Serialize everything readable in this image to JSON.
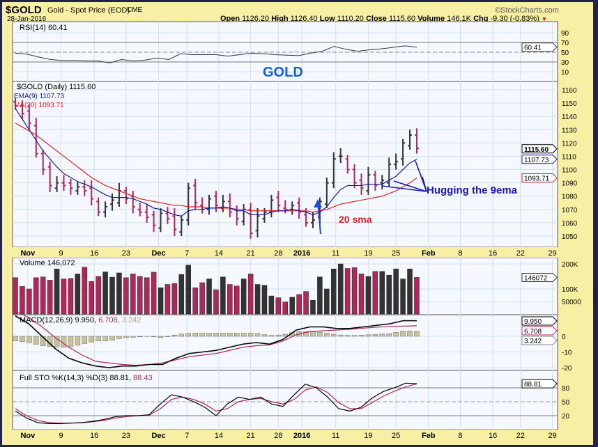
{
  "header": {
    "symbol": "$GOLD",
    "name": "Gold - Spot Price (EOD)",
    "exchange": "CME",
    "date": "28-Jan-2016",
    "copyright": "©StockCharts.com",
    "quote": [
      {
        "k": "Open",
        "v": "1126.20"
      },
      {
        "k": "High",
        "v": "1126.40"
      },
      {
        "k": "Low",
        "v": "1110.20"
      },
      {
        "k": "Close",
        "v": "1115.60"
      },
      {
        "k": "Volume",
        "v": "146.1K"
      },
      {
        "k": "Chg",
        "v": "-9.30 (-0.83%)"
      }
    ]
  },
  "rsi": {
    "label": "RSI(14) 60.41",
    "value_tag": "60.41",
    "ticks": [
      90,
      70,
      50,
      30,
      10
    ],
    "values": [
      48,
      46,
      40,
      35,
      33,
      33,
      32,
      32,
      28,
      35,
      32,
      34,
      38,
      35,
      47,
      45,
      45,
      45,
      42,
      45,
      48,
      47,
      45,
      44,
      43,
      48,
      52,
      62,
      56,
      52,
      55,
      57,
      60,
      63,
      60.41
    ]
  },
  "price": {
    "label": "$GOLD (Daily) 1115.60",
    "ema_label": "EMA(9) 1107.73",
    "ma_label": "MA(20) 1093.71",
    "tags": {
      "close": "1115.60",
      "ema": "1107.73",
      "ma": "1093.71"
    },
    "ticks": [
      1160,
      1150,
      1140,
      1130,
      1120,
      1110,
      1100,
      1090,
      1080,
      1070,
      1060,
      1050
    ],
    "closes": [
      1148,
      1142,
      1135,
      1112,
      1100,
      1088,
      1090,
      1088,
      1086,
      1087,
      1084,
      1078,
      1068,
      1072,
      1077,
      1084,
      1078,
      1072,
      1068,
      1064,
      1058,
      1067,
      1063,
      1055,
      1062,
      1086,
      1075,
      1070,
      1078,
      1073,
      1076,
      1068,
      1063,
      1070,
      1052,
      1065,
      1068,
      1077,
      1073,
      1070,
      1073,
      1068,
      1060,
      1062,
      1076,
      1090,
      1108,
      1110,
      1100,
      1090,
      1086,
      1096,
      1088,
      1092,
      1104,
      1106,
      1120,
      1126,
      1116
    ],
    "ema": [
      1146,
      1138,
      1130,
      1122,
      1114,
      1108,
      1102,
      1097,
      1094,
      1091,
      1089,
      1087,
      1084,
      1081,
      1079,
      1079,
      1079,
      1078,
      1076,
      1074,
      1071,
      1070,
      1068,
      1066,
      1065,
      1069,
      1070,
      1070,
      1071,
      1071,
      1072,
      1071,
      1069,
      1069,
      1066,
      1066,
      1066,
      1068,
      1069,
      1069,
      1070,
      1069,
      1068,
      1066,
      1068,
      1072,
      1079,
      1085,
      1088,
      1088,
      1088,
      1089,
      1089,
      1089,
      1092,
      1095,
      1100,
      1105,
      1107.73
    ],
    "ma": [
      1135,
      1132,
      1129,
      1126,
      1122,
      1118,
      1114,
      1110,
      1106,
      1102,
      1098,
      1094,
      1091,
      1088,
      1086,
      1084,
      1082,
      1080,
      1078,
      1077,
      1076,
      1075,
      1074,
      1073,
      1073,
      1072,
      1072,
      1072,
      1071,
      1071,
      1071,
      1071,
      1070,
      1070,
      1069,
      1069,
      1069,
      1069,
      1069,
      1069,
      1069,
      1069,
      1069,
      1068,
      1069,
      1070,
      1072,
      1074,
      1075,
      1076,
      1077,
      1078,
      1079,
      1080,
      1082,
      1084,
      1087,
      1090,
      1093.71
    ]
  },
  "annotations": {
    "title": "GOLD",
    "hug": "Hugging the 9ema",
    "sma": "20 sma"
  },
  "volume": {
    "label": "Volume 146,072",
    "value_tag": "146072",
    "ticks": [
      "200K",
      "100K",
      "50000"
    ],
    "values": [
      145,
      110,
      100,
      145,
      148,
      135,
      180,
      140,
      142,
      160,
      187,
      130,
      150,
      168,
      147,
      164,
      145,
      160,
      150,
      145,
      167,
      105,
      118,
      122,
      158,
      195,
      105,
      125,
      140,
      97,
      148,
      118,
      112,
      140,
      160,
      118,
      115,
      72,
      65,
      48,
      67,
      78,
      90,
      55,
      148,
      100,
      180,
      200,
      182,
      185,
      160,
      150,
      170,
      170,
      155,
      180,
      140,
      180,
      146
    ]
  },
  "macd": {
    "label": "MACD(12,26,9) 9.950,",
    "signal_text": "6.708,",
    "hist_text": "3.242",
    "tags": [
      "9.950",
      "6.708",
      "3.242"
    ],
    "ticks": [
      "0",
      "-10",
      "-20"
    ],
    "macd": [
      13,
      8,
      0,
      -8,
      -14,
      -17,
      -19,
      -20,
      -19,
      -19,
      -18,
      -18,
      -14,
      -11,
      -10,
      -9,
      -7,
      -5,
      -4,
      -5,
      -2,
      4,
      6,
      6,
      5,
      5,
      6,
      7,
      8,
      10,
      9.95
    ],
    "signal": [
      16,
      12,
      6,
      -1,
      -7,
      -12,
      -16,
      -17,
      -18,
      -18.5,
      -18,
      -17,
      -15,
      -13,
      -12,
      -11,
      -9,
      -7,
      -6,
      -5.5,
      -3,
      1,
      3,
      3.5,
      4,
      4.5,
      5.2,
      5.8,
      6.3,
      6.5,
      6.708
    ]
  },
  "sto": {
    "label": "Full STO %K(14,3) %D(3) 88.81,",
    "d_text": "88.43",
    "tag": "88.81",
    "ticks": [
      "80",
      "50",
      "20"
    ],
    "k": [
      30,
      15,
      5,
      3,
      3,
      4,
      5,
      8,
      12,
      18,
      20,
      20,
      22,
      45,
      65,
      60,
      50,
      38,
      20,
      45,
      60,
      55,
      60,
      45,
      40,
      65,
      88,
      80,
      60,
      35,
      30,
      38,
      58,
      72,
      80,
      90,
      88.81
    ],
    "d": [
      35,
      20,
      10,
      5,
      4,
      4,
      5,
      7,
      10,
      15,
      18,
      20,
      21,
      35,
      55,
      60,
      55,
      45,
      30,
      35,
      50,
      55,
      57,
      50,
      45,
      55,
      75,
      82,
      70,
      48,
      35,
      35,
      48,
      62,
      73,
      82,
      88.43
    ]
  },
  "dates": [
    {
      "t": "Nov",
      "i": 1.8
    },
    {
      "t": "9",
      "i": 6.6
    },
    {
      "t": "16",
      "i": 11.4
    },
    {
      "t": "23",
      "i": 16
    },
    {
      "t": "Dec",
      "i": 20.7
    },
    {
      "t": "7",
      "i": 24.8
    },
    {
      "t": "14",
      "i": 29.4
    },
    {
      "t": "21",
      "i": 34
    },
    {
      "t": "28",
      "i": 38
    },
    {
      "t": "2016",
      "i": 41.4
    },
    {
      "t": "11",
      "i": 46.3
    },
    {
      "t": "19",
      "i": 51
    },
    {
      "t": "25",
      "i": 55
    },
    {
      "t": "Feb",
      "i": 59.7
    },
    {
      "t": "8",
      "i": 64.3
    },
    {
      "t": "16",
      "i": 69
    },
    {
      "t": "22",
      "i": 73
    },
    {
      "t": "29",
      "i": 77.6
    }
  ],
  "colors": {
    "up": "#333333",
    "down": "#b0285a",
    "ema": "#1a1a9a",
    "ma": "#dd2222",
    "annot": "#1560d8"
  }
}
